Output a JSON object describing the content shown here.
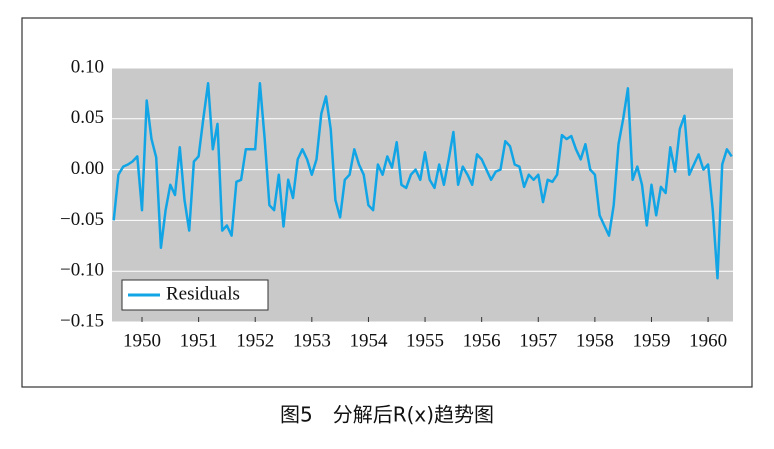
{
  "chart_data": {
    "type": "line",
    "caption": "图5　分解后R(x)趋势图",
    "series": [
      {
        "name": "Residuals",
        "color": "#12a5e6",
        "x": [
          1949.5,
          1949.583,
          1949.667,
          1949.75,
          1949.833,
          1949.917,
          1950,
          1950.083,
          1950.167,
          1950.25,
          1950.333,
          1950.417,
          1950.5,
          1950.583,
          1950.667,
          1950.75,
          1950.833,
          1950.917,
          1951,
          1951.083,
          1951.167,
          1951.25,
          1951.333,
          1951.417,
          1951.5,
          1951.583,
          1951.667,
          1951.75,
          1951.833,
          1951.917,
          1952,
          1952.083,
          1952.167,
          1952.25,
          1952.333,
          1952.417,
          1952.5,
          1952.583,
          1952.667,
          1952.75,
          1952.833,
          1952.917,
          1953,
          1953.083,
          1953.167,
          1953.25,
          1953.333,
          1953.417,
          1953.5,
          1953.583,
          1953.667,
          1953.75,
          1953.833,
          1953.917,
          1954,
          1954.083,
          1954.167,
          1954.25,
          1954.333,
          1954.417,
          1954.5,
          1954.583,
          1954.667,
          1954.75,
          1954.833,
          1954.917,
          1955,
          1955.083,
          1955.167,
          1955.25,
          1955.333,
          1955.417,
          1955.5,
          1955.583,
          1955.667,
          1955.75,
          1955.833,
          1955.917,
          1956,
          1956.083,
          1956.167,
          1956.25,
          1956.333,
          1956.417,
          1956.5,
          1956.583,
          1956.667,
          1956.75,
          1956.833,
          1956.917,
          1957,
          1957.083,
          1957.167,
          1957.25,
          1957.333,
          1957.417,
          1957.5,
          1957.583,
          1957.667,
          1957.75,
          1957.833,
          1957.917,
          1958,
          1958.083,
          1958.167,
          1958.25,
          1958.333,
          1958.417,
          1958.5,
          1958.583,
          1958.667,
          1958.75,
          1958.833,
          1958.917,
          1959,
          1959.083,
          1959.167,
          1959.25,
          1959.333,
          1959.417,
          1959.5,
          1959.583,
          1959.667,
          1959.75,
          1959.833,
          1959.917,
          1960,
          1960.083,
          1960.167,
          1960.25,
          1960.333,
          1960.417
        ],
        "values": [
          -0.05,
          -0.005,
          0.003,
          0.005,
          0.008,
          0.013,
          -0.04,
          0.068,
          0.03,
          0.012,
          -0.077,
          -0.04,
          -0.015,
          -0.025,
          0.022,
          -0.03,
          -0.06,
          0.008,
          0.013,
          0.05,
          0.085,
          0.02,
          0.045,
          -0.06,
          -0.055,
          -0.065,
          -0.012,
          -0.01,
          0.02,
          0.02,
          0.02,
          0.085,
          0.03,
          -0.035,
          -0.04,
          -0.005,
          -0.056,
          -0.01,
          -0.028,
          0.01,
          0.02,
          0.01,
          -0.005,
          0.01,
          0.055,
          0.072,
          0.04,
          -0.03,
          -0.047,
          -0.01,
          -0.005,
          0.02,
          0.005,
          -0.005,
          -0.035,
          -0.04,
          0.005,
          -0.005,
          0.013,
          0.002,
          0.027,
          -0.015,
          -0.018,
          -0.005,
          0,
          -0.01,
          0.017,
          -0.01,
          -0.018,
          0.005,
          -0.015,
          0.01,
          0.037,
          -0.015,
          0.003,
          -0.005,
          -0.015,
          0.015,
          0.01,
          0,
          -0.01,
          -0.002,
          0,
          0.028,
          0.023,
          0.005,
          0.003,
          -0.017,
          -0.005,
          -0.01,
          -0.005,
          -0.032,
          -0.01,
          -0.012,
          -0.005,
          0.034,
          0.03,
          0.033,
          0.02,
          0.01,
          0.025,
          0,
          -0.005,
          -0.045,
          -0.055,
          -0.065,
          -0.035,
          0.025,
          0.05,
          0.08,
          -0.01,
          0.003,
          -0.015,
          -0.055,
          -0.015,
          -0.045,
          -0.017,
          -0.023,
          0.022,
          -0.002,
          0.04,
          0.053,
          -0.005,
          0.005,
          0.015,
          0,
          0.005,
          -0.04,
          -0.107,
          0.005,
          0.02,
          0.013
        ]
      }
    ],
    "xlim": [
      1949.47,
      1960.44
    ],
    "xticks": [
      1950,
      1951,
      1952,
      1953,
      1954,
      1955,
      1956,
      1957,
      1958,
      1959,
      1960
    ],
    "ylim": [
      -0.15,
      0.1
    ],
    "yticks": [
      {
        "value": -0.15,
        "label": "−0.15"
      },
      {
        "value": -0.1,
        "label": "−0.10"
      },
      {
        "value": -0.05,
        "label": "−0.05"
      },
      {
        "value": 0,
        "label": "0.00"
      },
      {
        "value": 0.05,
        "label": "0.05"
      },
      {
        "value": 0.1,
        "label": "0.10"
      }
    ],
    "grid": true,
    "legend": "lower left"
  }
}
